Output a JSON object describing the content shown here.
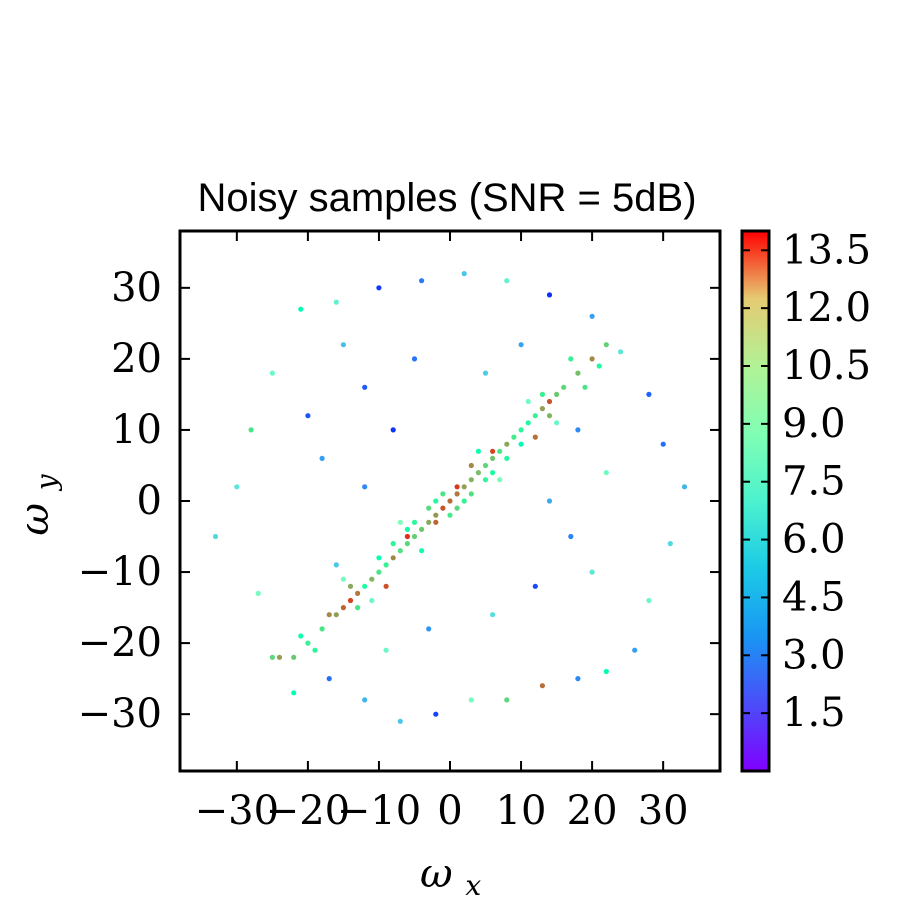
{
  "chart_data": {
    "type": "scatter",
    "title": "Noisy samples (SNR = 5dB)",
    "xlabel": "ω_x",
    "ylabel": "ω_y",
    "xlabel_main": "ω",
    "xlabel_sub": "x",
    "ylabel_main": "ω",
    "ylabel_sub": "y",
    "xlim": [
      -38,
      38
    ],
    "ylim": [
      -38,
      38
    ],
    "x_ticks": [
      -30,
      -20,
      -10,
      0,
      10,
      20,
      30
    ],
    "y_ticks": [
      -30,
      -20,
      -10,
      0,
      10,
      20,
      30
    ],
    "x_tick_labels": [
      "−30",
      "−20",
      "−10",
      "0",
      "10",
      "20",
      "30"
    ],
    "y_tick_labels": [
      "−30",
      "−20",
      "−10",
      "0",
      "10",
      "20",
      "30"
    ],
    "colorbar": {
      "range": [
        0,
        14
      ],
      "tick_values": [
        1.5,
        3.0,
        4.5,
        6.0,
        7.5,
        9.0,
        10.5,
        12.0,
        13.5
      ],
      "tick_labels": [
        "1.5",
        "3.0",
        "4.5",
        "6.0",
        "7.5",
        "9.0",
        "10.5",
        "12.0",
        "13.5"
      ],
      "colormap": "rainbow"
    },
    "grid": false,
    "legend": "none",
    "series": [
      {
        "points": [
          [
            0,
            0,
            12.0
          ],
          [
            -1,
            -1,
            12.5
          ],
          [
            1,
            1,
            11.8
          ],
          [
            2,
            2,
            11.0
          ],
          [
            -2,
            -2,
            11.2
          ],
          [
            3,
            3,
            10.5
          ],
          [
            -3,
            -3,
            10.8
          ],
          [
            4,
            4,
            10.2
          ],
          [
            -4,
            -4,
            10.0
          ],
          [
            5,
            5,
            9.5
          ],
          [
            -5,
            -5,
            9.8
          ],
          [
            6,
            6,
            10.1
          ],
          [
            -6,
            -6,
            9.6
          ],
          [
            7,
            7,
            9.0
          ],
          [
            -7,
            -7,
            9.2
          ],
          [
            8,
            8,
            10.8
          ],
          [
            -8,
            -8,
            11.5
          ],
          [
            9,
            9,
            8.8
          ],
          [
            -9,
            -9,
            8.5
          ],
          [
            10,
            10,
            8.2
          ],
          [
            -10,
            -10,
            9.0
          ],
          [
            11,
            11,
            7.9
          ],
          [
            -11,
            -11,
            10.5
          ],
          [
            12,
            12,
            8.5
          ],
          [
            -12,
            -12,
            7.8
          ],
          [
            13,
            13,
            11.0
          ],
          [
            -13,
            -13,
            11.8
          ],
          [
            14,
            14,
            12.5
          ],
          [
            -14,
            -14,
            12.8
          ],
          [
            15,
            15,
            10.0
          ],
          [
            -15,
            -15,
            12.2
          ],
          [
            16,
            16,
            9.5
          ],
          [
            -16,
            -16,
            11.0
          ],
          [
            18,
            18,
            10.2
          ],
          [
            -18,
            -18,
            9.0
          ],
          [
            20,
            20,
            11.5
          ],
          [
            -20,
            -20,
            8.5
          ],
          [
            22,
            22,
            9.8
          ],
          [
            -22,
            -22,
            10.0
          ],
          [
            -24,
            -22,
            11.0
          ],
          [
            1,
            -1,
            9.5
          ],
          [
            -1,
            1,
            9.0
          ],
          [
            2,
            0,
            8.5
          ],
          [
            0,
            -2,
            8.8
          ],
          [
            -2,
            0,
            8.0
          ],
          [
            3,
            1,
            9.2
          ],
          [
            -3,
            -1,
            9.4
          ],
          [
            5,
            3,
            8.2
          ],
          [
            -5,
            -3,
            8.0
          ],
          [
            6,
            4,
            7.8
          ],
          [
            -6,
            -4,
            7.5
          ],
          [
            8,
            6,
            8.0
          ],
          [
            -8,
            -6,
            8.2
          ],
          [
            10,
            8,
            7.0
          ],
          [
            -10,
            -8,
            7.2
          ],
          [
            13,
            15,
            8.5
          ],
          [
            -13,
            -15,
            9.0
          ],
          [
            14,
            12,
            10.5
          ],
          [
            -14,
            -12,
            10.8
          ],
          [
            -17,
            -16,
            11.5
          ],
          [
            19,
            16,
            9.0
          ],
          [
            21,
            19,
            8.0
          ],
          [
            -21,
            -19,
            7.5
          ],
          [
            17,
            20,
            8.5
          ],
          [
            -19,
            -21,
            8.2
          ],
          [
            -4,
            -7,
            7.5
          ],
          [
            4,
            7,
            7.2
          ],
          [
            7,
            3,
            6.5
          ],
          [
            -7,
            -3,
            6.8
          ],
          [
            11,
            14,
            6.2
          ],
          [
            -11,
            -14,
            6.0
          ],
          [
            15,
            11,
            5.8
          ],
          [
            -15,
            -11,
            6.5
          ],
          [
            -9,
            -12,
            12.6
          ],
          [
            12,
            9,
            12.0
          ],
          [
            6,
            7,
            12.8
          ],
          [
            -6,
            -5,
            13.2
          ],
          [
            1,
            2,
            13.0
          ],
          [
            -2,
            -3,
            12.2
          ],
          [
            3,
            5,
            11.5
          ],
          [
            -16,
            -9,
            4.0
          ],
          [
            -12,
            2,
            2.5
          ],
          [
            -18,
            6,
            3.0
          ],
          [
            -20,
            12,
            1.5
          ],
          [
            -25,
            18,
            6.0
          ],
          [
            -28,
            10,
            9.0
          ],
          [
            -30,
            2,
            5.0
          ],
          [
            -33,
            -5,
            4.5
          ],
          [
            -27,
            -13,
            6.5
          ],
          [
            -25,
            -22,
            9.5
          ],
          [
            -22,
            -27,
            7.0
          ],
          [
            -17,
            -25,
            2.0
          ],
          [
            -12,
            -28,
            3.5
          ],
          [
            -7,
            -31,
            4.0
          ],
          [
            -2,
            -30,
            1.2
          ],
          [
            3,
            -28,
            6.5
          ],
          [
            8,
            -28,
            9.5
          ],
          [
            13,
            -26,
            12.0
          ],
          [
            18,
            -25,
            2.5
          ],
          [
            22,
            -24,
            7.0
          ],
          [
            26,
            -21,
            3.0
          ],
          [
            28,
            -14,
            6.0
          ],
          [
            31,
            -6,
            4.5
          ],
          [
            33,
            2,
            3.5
          ],
          [
            30,
            8,
            2.0
          ],
          [
            28,
            15,
            1.8
          ],
          [
            24,
            21,
            5.0
          ],
          [
            20,
            26,
            3.0
          ],
          [
            14,
            29,
            0.8
          ],
          [
            8,
            31,
            5.5
          ],
          [
            2,
            32,
            4.0
          ],
          [
            -4,
            31,
            2.2
          ],
          [
            -10,
            30,
            1.0
          ],
          [
            -16,
            28,
            5.5
          ],
          [
            -21,
            27,
            7.0
          ],
          [
            -5,
            20,
            2.1
          ],
          [
            5,
            18,
            4.2
          ],
          [
            10,
            22,
            3.1
          ],
          [
            -12,
            16,
            1.6
          ],
          [
            -8,
            10,
            0.9
          ],
          [
            14,
            0,
            3.3
          ],
          [
            17,
            -5,
            2.4
          ],
          [
            20,
            -10,
            5.1
          ],
          [
            12,
            -12,
            1.3
          ],
          [
            6,
            -16,
            4.7
          ],
          [
            -3,
            -18,
            2.8
          ],
          [
            -9,
            -21,
            5.9
          ],
          [
            -15,
            22,
            3.8
          ],
          [
            18,
            10,
            2.6
          ],
          [
            22,
            4,
            6.3
          ]
        ]
      }
    ]
  }
}
